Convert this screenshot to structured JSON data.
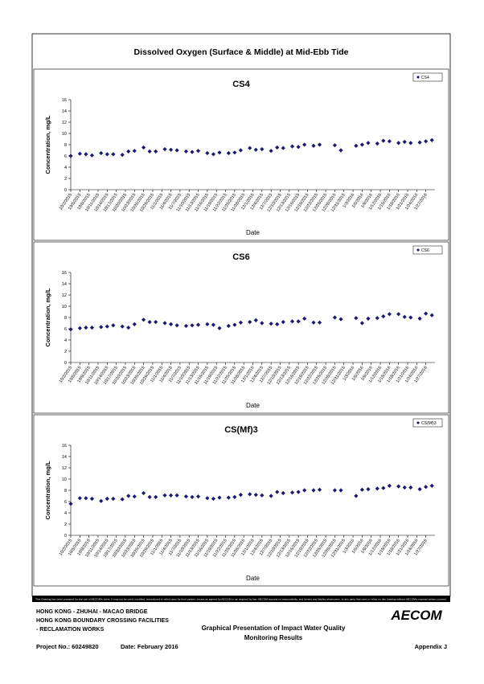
{
  "page_title": "Dissolved Oxygen (Surface & Middle) at Mid-Ebb Tide",
  "chart_data": [
    {
      "type": "scatter",
      "title": "CS4",
      "xlabel": "Date",
      "ylabel": "Concentration, mg/L",
      "legend": "upper right",
      "x": [
        "10/2/2015",
        "10/5/2015",
        "10/7/2015",
        "10/9/2015",
        "10/12/2015",
        "10/14/2015",
        "10/16/2015",
        "10/19/2015",
        "10/21/2015",
        "10/23/2015",
        "10/26/2015",
        "10/28/2015",
        "10/30/2015",
        "11/2/2015",
        "11/4/2015",
        "11/6/2015",
        "11/9/2015",
        "11/11/2015",
        "11/13/2015",
        "11/16/2015",
        "11/18/2015",
        "11/20/2015",
        "11/23/2015",
        "11/25/2015",
        "11/27/2015",
        "11/30/2015",
        "12/2/2015",
        "12/4/2015",
        "12/7/2015",
        "12/9/2015",
        "12/11/2015",
        "12/14/2015",
        "12/16/2015",
        "12/18/2015",
        "12/21/2015",
        "12/23/2015",
        "12/28/2015",
        "12/30/2015",
        "1/4/2016",
        "1/6/2016",
        "1/8/2016",
        "1/11/2016",
        "1/13/2016",
        "1/15/2016",
        "1/18/2016",
        "1/20/2016",
        "1/22/2016",
        "1/25/2016",
        "1/27/2016",
        "1/29/2016"
      ],
      "series": [
        {
          "name": "CS4",
          "color": "#1a1a6e",
          "values": [
            6.0,
            6.4,
            6.3,
            6.1,
            6.5,
            6.3,
            6.3,
            6.2,
            6.8,
            6.9,
            7.5,
            6.8,
            6.8,
            7.2,
            7.1,
            7.0,
            6.8,
            6.7,
            6.9,
            6.5,
            6.3,
            6.6,
            6.5,
            6.6,
            7.0,
            7.4,
            7.1,
            7.2,
            6.9,
            7.5,
            7.4,
            7.7,
            7.6,
            8.0,
            7.8,
            8.0,
            7.9,
            7.0,
            7.8,
            8.0,
            8.3,
            8.2,
            8.7,
            8.6,
            8.3,
            8.5,
            8.3,
            8.4,
            8.6,
            8.8
          ]
        }
      ],
      "xlim": [
        "10/2/2015",
        "1/30/2016"
      ],
      "xticks": [
        "10/2/2015",
        "10/5/2015",
        "10/8/2015",
        "10/11/2015",
        "10/14/2015",
        "10/17/2015",
        "10/20/2015",
        "10/23/2015",
        "10/26/2015",
        "10/29/2015",
        "11/1/2015",
        "11/4/2015",
        "11/7/2015",
        "11/10/2015",
        "11/13/2015",
        "11/16/2015",
        "11/19/2015",
        "11/22/2015",
        "11/25/2015",
        "11/28/2015",
        "12/1/2015",
        "12/4/2015",
        "12/7/2015",
        "12/10/2015",
        "12/13/2015",
        "12/16/2015",
        "12/19/2015",
        "12/22/2015",
        "12/25/2015",
        "12/28/2015",
        "12/31/2015",
        "1/3/2016",
        "1/6/2016",
        "1/9/2016",
        "1/12/2016",
        "1/15/2016",
        "1/18/2016",
        "1/21/2016",
        "1/24/2016",
        "1/27/2016"
      ],
      "ylim": [
        0,
        16
      ],
      "yticks": [
        0,
        2,
        4,
        6,
        8,
        10,
        12,
        14,
        16
      ]
    },
    {
      "type": "scatter",
      "title": "CS6",
      "xlabel": "Date",
      "ylabel": "Concentration, mg/L",
      "legend": "upper right",
      "x": [
        "10/2/2015",
        "10/5/2015",
        "10/7/2015",
        "10/9/2015",
        "10/12/2015",
        "10/14/2015",
        "10/16/2015",
        "10/19/2015",
        "10/21/2015",
        "10/23/2015",
        "10/26/2015",
        "10/28/2015",
        "10/30/2015",
        "11/2/2015",
        "11/4/2015",
        "11/6/2015",
        "11/9/2015",
        "11/11/2015",
        "11/13/2015",
        "11/16/2015",
        "11/18/2015",
        "11/20/2015",
        "11/23/2015",
        "11/25/2015",
        "11/27/2015",
        "11/30/2015",
        "12/2/2015",
        "12/4/2015",
        "12/7/2015",
        "12/9/2015",
        "12/11/2015",
        "12/14/2015",
        "12/16/2015",
        "12/18/2015",
        "12/21/2015",
        "12/23/2015",
        "12/28/2015",
        "12/30/2015",
        "1/4/2016",
        "1/6/2016",
        "1/8/2016",
        "1/11/2016",
        "1/13/2016",
        "1/15/2016",
        "1/18/2016",
        "1/20/2016",
        "1/22/2016",
        "1/25/2016",
        "1/27/2016",
        "1/29/2016"
      ],
      "series": [
        {
          "name": "CS6",
          "color": "#1a1a6e",
          "values": [
            5.9,
            6.1,
            6.2,
            6.2,
            6.3,
            6.4,
            6.6,
            6.4,
            6.2,
            6.8,
            7.6,
            7.2,
            7.2,
            7.0,
            6.8,
            6.6,
            6.5,
            6.6,
            6.7,
            6.8,
            6.7,
            6.1,
            6.5,
            6.7,
            7.1,
            7.2,
            7.5,
            7.0,
            6.9,
            6.8,
            7.2,
            7.3,
            7.3,
            7.8,
            7.1,
            7.1,
            8.0,
            7.7,
            7.9,
            7.0,
            7.8,
            7.9,
            8.2,
            8.6,
            8.6,
            8.1,
            8.0,
            7.8,
            8.7,
            8.4
          ]
        }
      ],
      "xlim": [
        "10/2/2015",
        "1/30/2016"
      ],
      "xticks": [
        "10/2/2015",
        "10/5/2015",
        "10/8/2015",
        "10/11/2015",
        "10/14/2015",
        "10/17/2015",
        "10/20/2015",
        "10/23/2015",
        "10/26/2015",
        "10/29/2015",
        "11/1/2015",
        "11/4/2015",
        "11/7/2015",
        "11/10/2015",
        "11/13/2015",
        "11/16/2015",
        "11/19/2015",
        "11/22/2015",
        "11/25/2015",
        "11/28/2015",
        "12/1/2015",
        "12/4/2015",
        "12/7/2015",
        "12/10/2015",
        "12/13/2015",
        "12/16/2015",
        "12/19/2015",
        "12/22/2015",
        "12/25/2015",
        "12/28/2015",
        "12/31/2015",
        "1/3/2016",
        "1/6/2016",
        "1/9/2016",
        "1/12/2016",
        "1/15/2016",
        "1/18/2016",
        "1/21/2016",
        "1/24/2016",
        "1/27/2016"
      ],
      "ylim": [
        0,
        16
      ],
      "yticks": [
        0,
        2,
        4,
        6,
        8,
        10,
        12,
        14,
        16
      ]
    },
    {
      "type": "scatter",
      "title": "CS(Mf)3",
      "xlabel": "Date",
      "ylabel": "Concentration, mg/L",
      "legend": "upper right",
      "x": [
        "10/2/2015",
        "10/5/2015",
        "10/7/2015",
        "10/9/2015",
        "10/12/2015",
        "10/14/2015",
        "10/16/2015",
        "10/19/2015",
        "10/21/2015",
        "10/23/2015",
        "10/26/2015",
        "10/28/2015",
        "10/30/2015",
        "11/2/2015",
        "11/4/2015",
        "11/6/2015",
        "11/9/2015",
        "11/11/2015",
        "11/13/2015",
        "11/16/2015",
        "11/18/2015",
        "11/20/2015",
        "11/23/2015",
        "11/25/2015",
        "11/27/2015",
        "11/30/2015",
        "12/2/2015",
        "12/4/2015",
        "12/7/2015",
        "12/9/2015",
        "12/11/2015",
        "12/14/2015",
        "12/16/2015",
        "12/18/2015",
        "12/21/2015",
        "12/23/2015",
        "12/28/2015",
        "12/30/2015",
        "1/4/2016",
        "1/6/2016",
        "1/8/2016",
        "1/11/2016",
        "1/13/2016",
        "1/15/2016",
        "1/18/2016",
        "1/20/2016",
        "1/22/2016",
        "1/25/2016",
        "1/27/2016",
        "1/29/2016"
      ],
      "series": [
        {
          "name": "CS(Mf)3",
          "color": "#1a1a6e",
          "values": [
            5.6,
            6.6,
            6.6,
            6.5,
            6.1,
            6.5,
            6.5,
            6.4,
            7.0,
            6.9,
            7.5,
            6.8,
            6.8,
            7.1,
            7.1,
            7.1,
            6.9,
            6.8,
            6.9,
            6.6,
            6.5,
            6.7,
            6.7,
            6.8,
            7.2,
            7.3,
            7.2,
            7.1,
            7.0,
            7.7,
            7.5,
            7.6,
            7.7,
            8.0,
            8.0,
            8.1,
            8.0,
            8.0,
            7.0,
            8.1,
            8.2,
            8.3,
            8.4,
            8.8,
            8.7,
            8.5,
            8.5,
            8.2,
            8.6,
            8.8
          ]
        }
      ],
      "xlim": [
        "10/2/2015",
        "1/30/2016"
      ],
      "xticks": [
        "10/2/2015",
        "10/5/2015",
        "10/8/2015",
        "10/11/2015",
        "10/14/2015",
        "10/17/2015",
        "10/20/2015",
        "10/23/2015",
        "10/26/2015",
        "10/29/2015",
        "11/1/2015",
        "11/4/2015",
        "11/7/2015",
        "11/10/2015",
        "11/13/2015",
        "11/16/2015",
        "11/19/2015",
        "11/22/2015",
        "11/25/2015",
        "11/28/2015",
        "12/1/2015",
        "12/4/2015",
        "12/7/2015",
        "12/10/2015",
        "12/13/2015",
        "12/16/2015",
        "12/19/2015",
        "12/22/2015",
        "12/25/2015",
        "12/28/2015",
        "12/31/2015",
        "1/3/2016",
        "1/6/2016",
        "1/9/2016",
        "1/12/2016",
        "1/15/2016",
        "1/18/2016",
        "1/21/2016",
        "1/24/2016",
        "1/27/2016"
      ],
      "ylim": [
        0,
        16
      ],
      "yticks": [
        0,
        2,
        4,
        6,
        8,
        10,
        12,
        14,
        16
      ]
    }
  ],
  "footer": {
    "disclaimer": "This Drawing has been prepared for the use of AECOM's client. It may not be used, modified, reproduced or relied upon by third parties, except as agreed by AECOM or as required by law. AECOM accepts no responsibility, and denies any liability whatsoever, to any party that uses or relies on this drawing without AECOM's express written consent.",
    "project_lines": [
      "HONG KONG - ZHUHAI - MACAO BRIDGE",
      "HONG KONG BOUNDARY CROSSING FACILITIES",
      "- RECLAMATION WORKS"
    ],
    "logo": "AECOM",
    "report_title": [
      "Graphical Presentation of Impact Water Quality",
      "Monitoring Results"
    ],
    "project_no": "Project No.: 60249820",
    "date": "Date: February 2016",
    "appendix": "Appendix J"
  }
}
